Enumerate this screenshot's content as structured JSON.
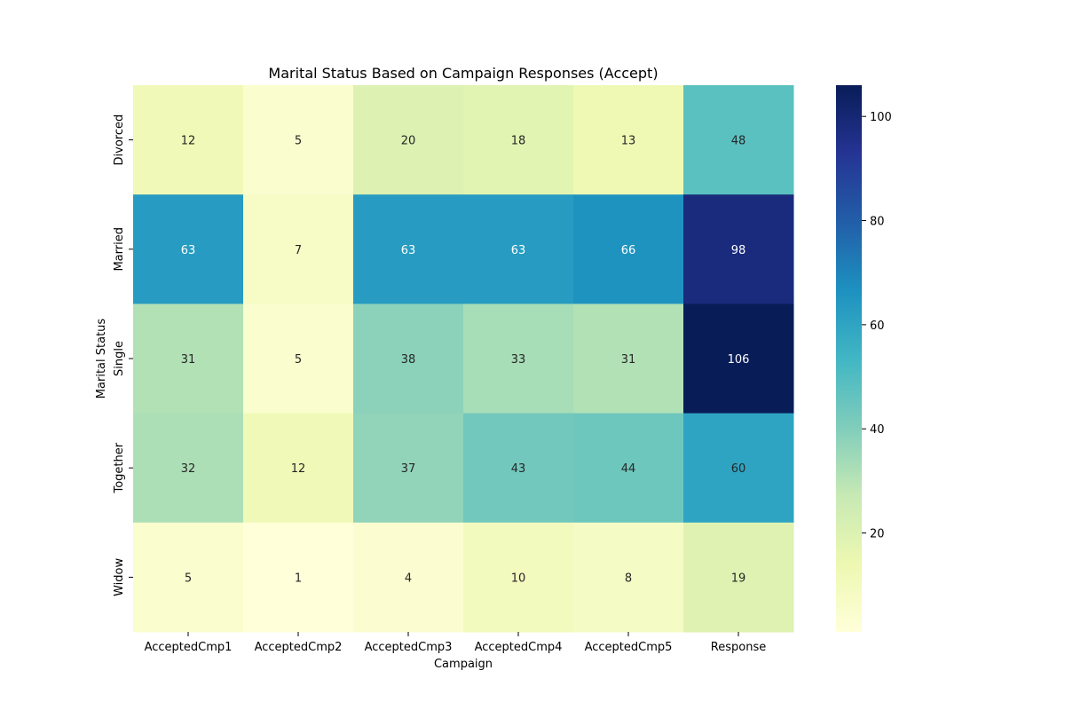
{
  "chart_data": {
    "type": "heatmap",
    "title": "Marital Status Based on Campaign Responses (Accept)",
    "xlabel": "Campaign",
    "ylabel": "Marital Status",
    "x_categories": [
      "AcceptedCmp1",
      "AcceptedCmp2",
      "AcceptedCmp3",
      "AcceptedCmp4",
      "AcceptedCmp5",
      "Response"
    ],
    "y_categories": [
      "Divorced",
      "Married",
      "Single",
      "Together",
      "Widow"
    ],
    "values": [
      [
        12,
        5,
        20,
        18,
        13,
        48
      ],
      [
        63,
        7,
        63,
        63,
        66,
        98
      ],
      [
        31,
        5,
        38,
        33,
        31,
        106
      ],
      [
        32,
        12,
        37,
        43,
        44,
        60
      ],
      [
        5,
        1,
        4,
        10,
        8,
        19
      ]
    ],
    "colormap": "YlGnBu",
    "colorbar": {
      "range": [
        1,
        106
      ],
      "ticks": [
        20,
        40,
        60,
        80,
        100
      ]
    },
    "annotations": true
  }
}
